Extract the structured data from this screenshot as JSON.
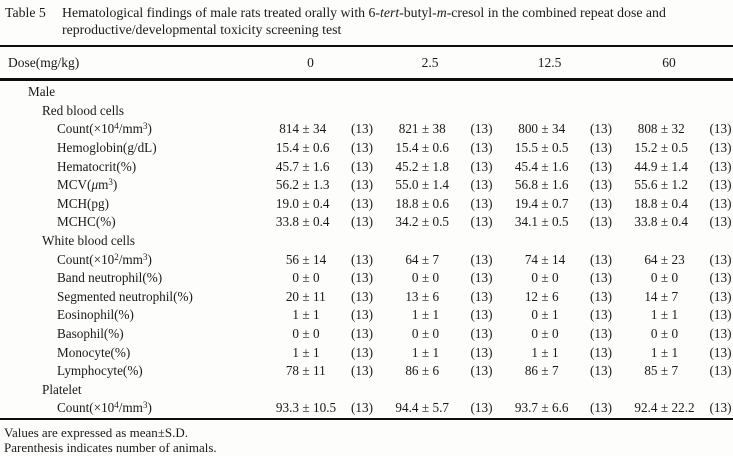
{
  "table_label": "Table 5",
  "title_segments": [
    {
      "t": "Hematological findings of male rats treated orally with 6-"
    },
    {
      "t": "tert",
      "it": true
    },
    {
      "t": "-butyl-"
    },
    {
      "t": "m",
      "it": true
    },
    {
      "t": "-cresol in the combined repeat dose and reproductive/developmental toxicity screening test"
    }
  ],
  "pm": "±",
  "columns": {
    "label": "Dose(mg/kg)",
    "doses": [
      "0",
      "2.5",
      "12.5",
      "60"
    ]
  },
  "rows": [
    {
      "type": "section",
      "level": 1,
      "label": [
        {
          "t": "Male"
        }
      ]
    },
    {
      "type": "section",
      "level": 2,
      "label": [
        {
          "t": "Red blood cells"
        }
      ]
    },
    {
      "type": "data",
      "level": 3,
      "label": [
        {
          "t": "Count(×10"
        },
        {
          "t": "4",
          "sup": true
        },
        {
          "t": "/mm"
        },
        {
          "t": "3",
          "sup": true
        },
        {
          "t": ")"
        }
      ],
      "cells": [
        {
          "mean": "814",
          "sd": "34",
          "n": "(13)"
        },
        {
          "mean": "821",
          "sd": "38",
          "n": "(13)"
        },
        {
          "mean": "800",
          "sd": "34",
          "n": "(13)"
        },
        {
          "mean": "808",
          "sd": "32",
          "n": "(13)"
        }
      ]
    },
    {
      "type": "data",
      "level": 3,
      "label": [
        {
          "t": "Hemoglobin(g/dL)"
        }
      ],
      "cells": [
        {
          "mean": "15.4",
          "sd": "0.6",
          "n": "(13)"
        },
        {
          "mean": "15.4",
          "sd": "0.6",
          "n": "(13)"
        },
        {
          "mean": "15.5",
          "sd": "0.5",
          "n": "(13)"
        },
        {
          "mean": "15.2",
          "sd": "0.5",
          "n": "(13)"
        }
      ]
    },
    {
      "type": "data",
      "level": 3,
      "label": [
        {
          "t": "Hematocrit(%)"
        }
      ],
      "cells": [
        {
          "mean": "45.7",
          "sd": "1.6",
          "n": "(13)"
        },
        {
          "mean": "45.2",
          "sd": "1.8",
          "n": "(13)"
        },
        {
          "mean": "45.4",
          "sd": "1.6",
          "n": "(13)"
        },
        {
          "mean": "44.9",
          "sd": "1.4",
          "n": "(13)"
        }
      ]
    },
    {
      "type": "data",
      "level": 3,
      "label": [
        {
          "t": "MCV("
        },
        {
          "t": "μ",
          "it": true
        },
        {
          "t": "m"
        },
        {
          "t": "3",
          "sup": true
        },
        {
          "t": ")"
        }
      ],
      "cells": [
        {
          "mean": "56.2",
          "sd": "1.3",
          "n": "(13)"
        },
        {
          "mean": "55.0",
          "sd": "1.4",
          "n": "(13)"
        },
        {
          "mean": "56.8",
          "sd": "1.6",
          "n": "(13)"
        },
        {
          "mean": "55.6",
          "sd": "1.2",
          "n": "(13)"
        }
      ]
    },
    {
      "type": "data",
      "level": 3,
      "label": [
        {
          "t": "MCH(pg)"
        }
      ],
      "cells": [
        {
          "mean": "19.0",
          "sd": "0.4",
          "n": "(13)"
        },
        {
          "mean": "18.8",
          "sd": "0.6",
          "n": "(13)"
        },
        {
          "mean": "19.4",
          "sd": "0.7",
          "n": "(13)"
        },
        {
          "mean": "18.8",
          "sd": "0.4",
          "n": "(13)"
        }
      ]
    },
    {
      "type": "data",
      "level": 3,
      "label": [
        {
          "t": "MCHC(%)"
        }
      ],
      "cells": [
        {
          "mean": "33.8",
          "sd": "0.4",
          "n": "(13)"
        },
        {
          "mean": "34.2",
          "sd": "0.5",
          "n": "(13)"
        },
        {
          "mean": "34.1",
          "sd": "0.5",
          "n": "(13)"
        },
        {
          "mean": "33.8",
          "sd": "0.4",
          "n": "(13)"
        }
      ]
    },
    {
      "type": "section",
      "level": 2,
      "label": [
        {
          "t": "White blood cells"
        }
      ]
    },
    {
      "type": "data",
      "level": 3,
      "label": [
        {
          "t": "Count(×10"
        },
        {
          "t": "2",
          "sup": true
        },
        {
          "t": "/mm"
        },
        {
          "t": "3",
          "sup": true
        },
        {
          "t": ")"
        }
      ],
      "cells": [
        {
          "mean": "56",
          "sd": "14",
          "n": "(13)"
        },
        {
          "mean": "64",
          "sd": "7",
          "n": "(13)"
        },
        {
          "mean": "74",
          "sd": "14",
          "n": "(13)"
        },
        {
          "mean": "64",
          "sd": "23",
          "n": "(13)"
        }
      ]
    },
    {
      "type": "data",
      "level": 3,
      "label": [
        {
          "t": "Band neutrophil(%)"
        }
      ],
      "cells": [
        {
          "mean": "0",
          "sd": "0",
          "n": "(13)"
        },
        {
          "mean": "0",
          "sd": "0",
          "n": "(13)"
        },
        {
          "mean": "0",
          "sd": "0",
          "n": "(13)"
        },
        {
          "mean": "0",
          "sd": "0",
          "n": "(13)"
        }
      ]
    },
    {
      "type": "data",
      "level": 3,
      "label": [
        {
          "t": "Segmented neutrophil(%)"
        }
      ],
      "cells": [
        {
          "mean": "20",
          "sd": "11",
          "n": "(13)"
        },
        {
          "mean": "13",
          "sd": "6",
          "n": "(13)"
        },
        {
          "mean": "12",
          "sd": "6",
          "n": "(13)"
        },
        {
          "mean": "14",
          "sd": "7",
          "n": "(13)"
        }
      ]
    },
    {
      "type": "data",
      "level": 3,
      "label": [
        {
          "t": "Eosinophil(%)"
        }
      ],
      "cells": [
        {
          "mean": "1",
          "sd": "1",
          "n": "(13)"
        },
        {
          "mean": "1",
          "sd": "1",
          "n": "(13)"
        },
        {
          "mean": "0",
          "sd": "1",
          "n": "(13)"
        },
        {
          "mean": "1",
          "sd": "1",
          "n": "(13)"
        }
      ]
    },
    {
      "type": "data",
      "level": 3,
      "label": [
        {
          "t": "Basophil(%)"
        }
      ],
      "cells": [
        {
          "mean": "0",
          "sd": "0",
          "n": "(13)"
        },
        {
          "mean": "0",
          "sd": "0",
          "n": "(13)"
        },
        {
          "mean": "0",
          "sd": "0",
          "n": "(13)"
        },
        {
          "mean": "0",
          "sd": "0",
          "n": "(13)"
        }
      ]
    },
    {
      "type": "data",
      "level": 3,
      "label": [
        {
          "t": "Monocyte(%)"
        }
      ],
      "cells": [
        {
          "mean": "1",
          "sd": "1",
          "n": "(13)"
        },
        {
          "mean": "1",
          "sd": "1",
          "n": "(13)"
        },
        {
          "mean": "1",
          "sd": "1",
          "n": "(13)"
        },
        {
          "mean": "1",
          "sd": "1",
          "n": "(13)"
        }
      ]
    },
    {
      "type": "data",
      "level": 3,
      "label": [
        {
          "t": "Lymphocyte(%)"
        }
      ],
      "cells": [
        {
          "mean": "78",
          "sd": "11",
          "n": "(13)"
        },
        {
          "mean": "86",
          "sd": "6",
          "n": "(13)"
        },
        {
          "mean": "86",
          "sd": "7",
          "n": "(13)"
        },
        {
          "mean": "85",
          "sd": "7",
          "n": "(13)"
        }
      ]
    },
    {
      "type": "section",
      "level": 2,
      "label": [
        {
          "t": "Platelet"
        }
      ]
    },
    {
      "type": "data",
      "level": 3,
      "label": [
        {
          "t": "Count(×10"
        },
        {
          "t": "4",
          "sup": true
        },
        {
          "t": "/mm"
        },
        {
          "t": "3",
          "sup": true
        },
        {
          "t": ")"
        }
      ],
      "cells": [
        {
          "mean": "93.3",
          "sd": "10.5",
          "n": "(13)"
        },
        {
          "mean": "94.4",
          "sd": "5.7",
          "n": "(13)"
        },
        {
          "mean": "93.7",
          "sd": "6.6",
          "n": "(13)"
        },
        {
          "mean": "92.4",
          "sd": "22.2",
          "n": "(13)"
        }
      ]
    }
  ],
  "footnotes": [
    "Values are expressed as mean±S.D.",
    "Parenthesis indicates number of animals."
  ],
  "colors": {
    "text": "#1a1a1a",
    "rule": "#0e0e0e",
    "background": "#fdfdfc"
  }
}
